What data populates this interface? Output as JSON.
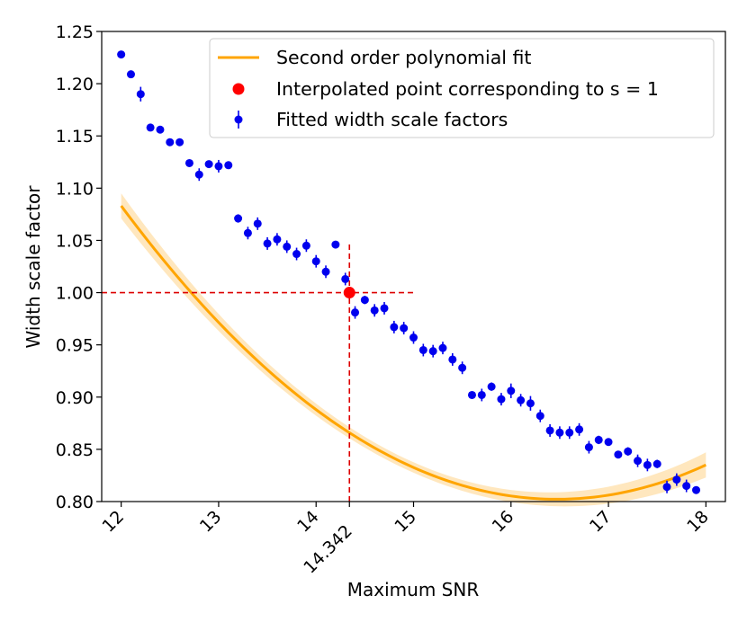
{
  "chart_data": {
    "type": "scatter",
    "xlabel": "Maximum SNR",
    "ylabel": "Width scale factor",
    "xlim": [
      11.8,
      18.2
    ],
    "ylim": [
      0.8,
      1.25
    ],
    "xticks": [
      {
        "value": 12,
        "label": "12"
      },
      {
        "value": 13,
        "label": "13"
      },
      {
        "value": 14,
        "label": "14"
      },
      {
        "value": 14.342,
        "label": "14.342"
      },
      {
        "value": 15,
        "label": "15"
      },
      {
        "value": 16,
        "label": "16"
      },
      {
        "value": 17,
        "label": "17"
      },
      {
        "value": 18,
        "label": "18"
      }
    ],
    "yticks": [
      {
        "value": 0.8,
        "label": "0.80"
      },
      {
        "value": 0.85,
        "label": "0.85"
      },
      {
        "value": 0.9,
        "label": "0.90"
      },
      {
        "value": 0.95,
        "label": "0.95"
      },
      {
        "value": 1.0,
        "label": "1.00"
      },
      {
        "value": 1.05,
        "label": "1.05"
      },
      {
        "value": 1.1,
        "label": "1.10"
      },
      {
        "value": 1.15,
        "label": "1.15"
      },
      {
        "value": 1.2,
        "label": "1.20"
      },
      {
        "value": 1.25,
        "label": "1.25"
      }
    ],
    "legend": {
      "placement": "top-right",
      "entries": [
        {
          "key": "fit",
          "label": "Second order polynomial fit"
        },
        {
          "key": "point",
          "label": "Interpolated point corresponding to s = 1"
        },
        {
          "key": "data",
          "label": "Fitted width scale factors"
        }
      ]
    },
    "fit": {
      "name": "Second order polynomial fit",
      "x_range": [
        12.0,
        18.0
      ],
      "coefficients": {
        "a": 0.01405,
        "b": -0.46283,
        "c": 4.6138
      },
      "band_halfwidth_ends": 0.012,
      "band_halfwidth_center": 0.005
    },
    "interpolated_point": {
      "name": "Interpolated point corresponding to s = 1",
      "x": 14.342,
      "y": 1.0
    },
    "reference_lines": {
      "x": 14.342,
      "y": 1.0,
      "x_line_top": 1.048,
      "y_line_right": 15.0
    },
    "series": [
      {
        "name": "Fitted width scale factors",
        "x": [
          12.0,
          12.1,
          12.2,
          12.3,
          12.4,
          12.5,
          12.6,
          12.7,
          12.8,
          12.9,
          13.0,
          13.1,
          13.2,
          13.3,
          13.4,
          13.5,
          13.6,
          13.7,
          13.8,
          13.9,
          14.0,
          14.1,
          14.2,
          14.3,
          14.4,
          14.5,
          14.6,
          14.7,
          14.8,
          14.9,
          15.0,
          15.1,
          15.2,
          15.3,
          15.4,
          15.5,
          15.6,
          15.7,
          15.8,
          15.9,
          16.0,
          16.1,
          16.2,
          16.3,
          16.4,
          16.5,
          16.6,
          16.7,
          16.8,
          16.9,
          17.0,
          17.1,
          17.2,
          17.3,
          17.4,
          17.5,
          17.6,
          17.7,
          17.8,
          17.9
        ],
        "y": [
          1.228,
          1.209,
          1.19,
          1.158,
          1.156,
          1.144,
          1.144,
          1.124,
          1.113,
          1.123,
          1.121,
          1.122,
          1.071,
          1.057,
          1.066,
          1.047,
          1.051,
          1.044,
          1.037,
          1.045,
          1.03,
          1.02,
          1.046,
          1.013,
          0.981,
          0.993,
          0.983,
          0.985,
          0.967,
          0.966,
          0.957,
          0.945,
          0.944,
          0.947,
          0.936,
          0.928,
          0.902,
          0.902,
          0.91,
          0.898,
          0.906,
          0.897,
          0.894,
          0.882,
          0.868,
          0.866,
          0.866,
          0.869,
          0.852,
          0.859,
          0.857,
          0.845,
          0.848,
          0.839,
          0.835,
          0.836,
          0.814,
          0.821,
          0.815,
          0.811
        ],
        "errors": [
          0.002,
          0.003,
          0.007,
          0.003,
          0.003,
          0.003,
          0.003,
          0.003,
          0.006,
          0.003,
          0.006,
          0.003,
          0.004,
          0.006,
          0.006,
          0.006,
          0.006,
          0.006,
          0.006,
          0.006,
          0.006,
          0.006,
          0.003,
          0.006,
          0.006,
          0.004,
          0.006,
          0.006,
          0.006,
          0.006,
          0.006,
          0.006,
          0.006,
          0.006,
          0.006,
          0.006,
          0.003,
          0.006,
          0.004,
          0.006,
          0.007,
          0.006,
          0.007,
          0.006,
          0.006,
          0.006,
          0.006,
          0.006,
          0.006,
          0.004,
          0.003,
          0.003,
          0.004,
          0.006,
          0.006,
          0.004,
          0.006,
          0.006,
          0.006,
          0.003
        ]
      }
    ],
    "colors": {
      "fit": "#FFA500",
      "band": "#FFDFA8",
      "points": "#0000EE",
      "interpolated": "#FF0000",
      "reference": "#DD0000"
    }
  }
}
